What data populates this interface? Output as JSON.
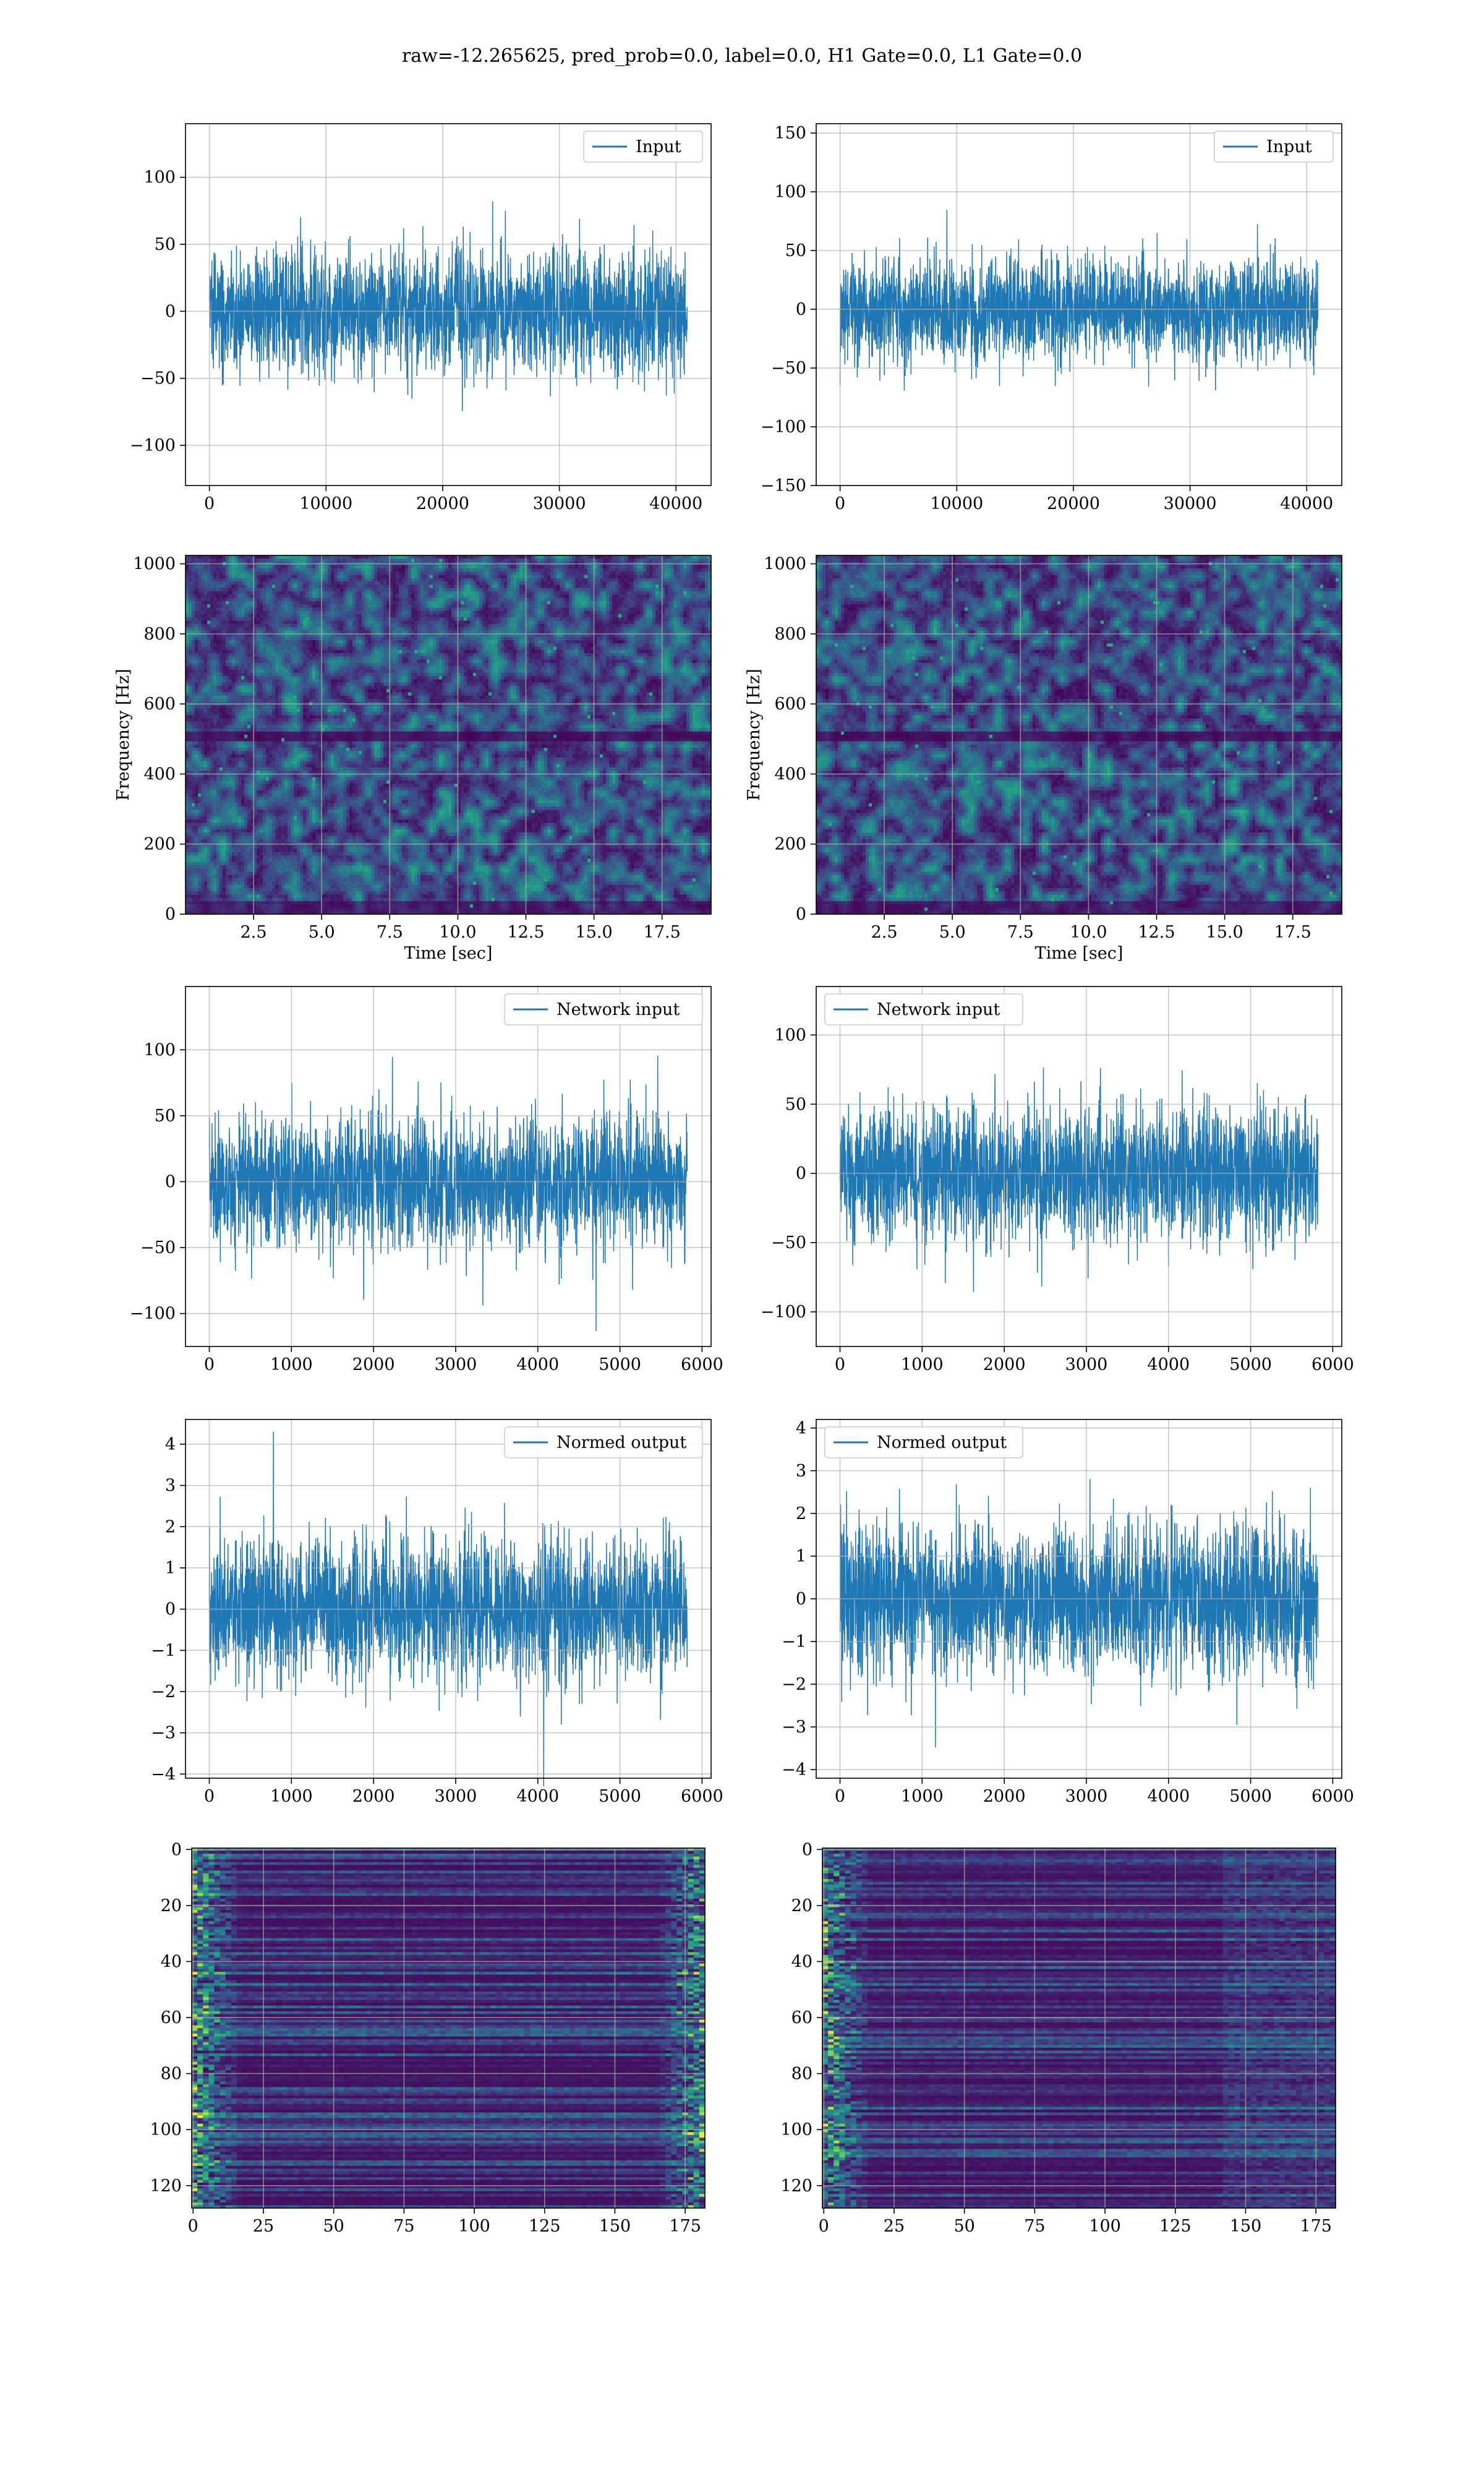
{
  "title": "raw=-12.265625, pred_prob=0.0, label=0.0, H1 Gate=0.0, L1 Gate=0.0",
  "colors": {
    "series": "#1f77b4",
    "grid": "#b0b0b0",
    "heat_low": "#440154",
    "heat_high": "#fde725"
  },
  "chart_data": [
    {
      "id": "input-h1",
      "type": "line",
      "legend": "Input",
      "legend_loc": "upper right",
      "xlim": [
        -2048,
        43008
      ],
      "ylim": [
        -130,
        140
      ],
      "xticks": [
        0,
        10000,
        20000,
        30000,
        40000
      ],
      "yticks": [
        -100,
        -50,
        0,
        50,
        100
      ],
      "x_range": [
        0,
        40960
      ],
      "amp": {
        "std": 22,
        "clip": 126
      },
      "grid": true
    },
    {
      "id": "input-l1",
      "type": "line",
      "legend": "Input",
      "legend_loc": "upper right",
      "xlim": [
        -2048,
        43008
      ],
      "ylim": [
        -150,
        158
      ],
      "xticks": [
        0,
        10000,
        20000,
        30000,
        40000
      ],
      "yticks": [
        -150,
        -100,
        -50,
        0,
        50,
        100,
        150
      ],
      "x_range": [
        0,
        40960
      ],
      "amp": {
        "std": 22,
        "clip": 150
      },
      "grid": true
    },
    {
      "id": "spectrogram-h1",
      "type": "heatmap",
      "xlabel": "Time [sec]",
      "ylabel": "Frequency [Hz]",
      "xlim": [
        0,
        19.3
      ],
      "ylim": [
        0,
        1024
      ],
      "xticks": [
        2.5,
        5.0,
        7.5,
        10.0,
        12.5,
        15.0,
        17.5
      ],
      "yticks": [
        0,
        200,
        400,
        600,
        800,
        1000
      ],
      "dark_band_hz": [
        490,
        520
      ],
      "grid": true
    },
    {
      "id": "spectrogram-l1",
      "type": "heatmap",
      "xlabel": "Time [sec]",
      "ylabel": "Frequency [Hz]",
      "xlim": [
        0,
        19.3
      ],
      "ylim": [
        0,
        1024
      ],
      "xticks": [
        2.5,
        5.0,
        7.5,
        10.0,
        12.5,
        15.0,
        17.5
      ],
      "yticks": [
        0,
        200,
        400,
        600,
        800,
        1000
      ],
      "dark_band_hz": [
        490,
        520
      ],
      "grid": true
    },
    {
      "id": "network-input-h1",
      "type": "line",
      "legend": "Network input",
      "legend_loc": "upper right",
      "xlim": [
        -290,
        6110
      ],
      "ylim": [
        -125,
        148
      ],
      "xticks": [
        0,
        1000,
        2000,
        3000,
        4000,
        5000,
        6000
      ],
      "yticks": [
        -100,
        -50,
        0,
        50,
        100
      ],
      "x_range": [
        0,
        5820
      ],
      "amp": {
        "std": 24,
        "clip": 135
      },
      "grid": true
    },
    {
      "id": "network-input-l1",
      "type": "line",
      "legend": "Network input",
      "legend_loc": "upper left",
      "xlim": [
        -290,
        6110
      ],
      "ylim": [
        -125,
        135
      ],
      "xticks": [
        0,
        1000,
        2000,
        3000,
        4000,
        5000,
        6000
      ],
      "yticks": [
        -100,
        -50,
        0,
        50,
        100
      ],
      "x_range": [
        0,
        5820
      ],
      "amp": {
        "std": 24,
        "clip": 122
      },
      "grid": true
    },
    {
      "id": "normed-output-h1",
      "type": "line",
      "legend": "Normed output",
      "legend_loc": "upper right",
      "xlim": [
        -290,
        6110
      ],
      "ylim": [
        -4.1,
        4.6
      ],
      "xticks": [
        0,
        1000,
        2000,
        3000,
        4000,
        5000,
        6000
      ],
      "yticks": [
        -4,
        -3,
        -2,
        -1,
        0,
        1,
        2,
        3,
        4
      ],
      "x_range": [
        0,
        5820
      ],
      "amp": {
        "std": 0.85,
        "clip": 4.3
      },
      "grid": true
    },
    {
      "id": "normed-output-l1",
      "type": "line",
      "legend": "Normed output",
      "legend_loc": "upper left",
      "xlim": [
        -290,
        6110
      ],
      "ylim": [
        -4.2,
        4.2
      ],
      "xticks": [
        0,
        1000,
        2000,
        3000,
        4000,
        5000,
        6000
      ],
      "yticks": [
        -4,
        -3,
        -2,
        -1,
        0,
        1,
        2,
        3,
        4
      ],
      "x_range": [
        0,
        5820
      ],
      "amp": {
        "std": 0.85,
        "clip": 3.85
      },
      "grid": true
    },
    {
      "id": "feature-map-h1",
      "type": "heatmap",
      "xlim": [
        -0.5,
        182
      ],
      "ylim": [
        128,
        -0.5
      ],
      "xticks": [
        0,
        25,
        50,
        75,
        100,
        125,
        150,
        175
      ],
      "yticks": [
        0,
        20,
        40,
        60,
        80,
        100,
        120
      ],
      "rows": 128,
      "cols": 182,
      "bright_edges": [
        "left",
        "right"
      ],
      "grid": true
    },
    {
      "id": "feature-map-l1",
      "type": "heatmap",
      "xlim": [
        -0.5,
        182
      ],
      "ylim": [
        128,
        -0.5
      ],
      "xticks": [
        0,
        25,
        50,
        75,
        100,
        125,
        150,
        175
      ],
      "yticks": [
        0,
        20,
        40,
        60,
        80,
        100,
        120
      ],
      "rows": 128,
      "cols": 182,
      "bright_edges": [
        "left"
      ],
      "grid": true
    }
  ]
}
